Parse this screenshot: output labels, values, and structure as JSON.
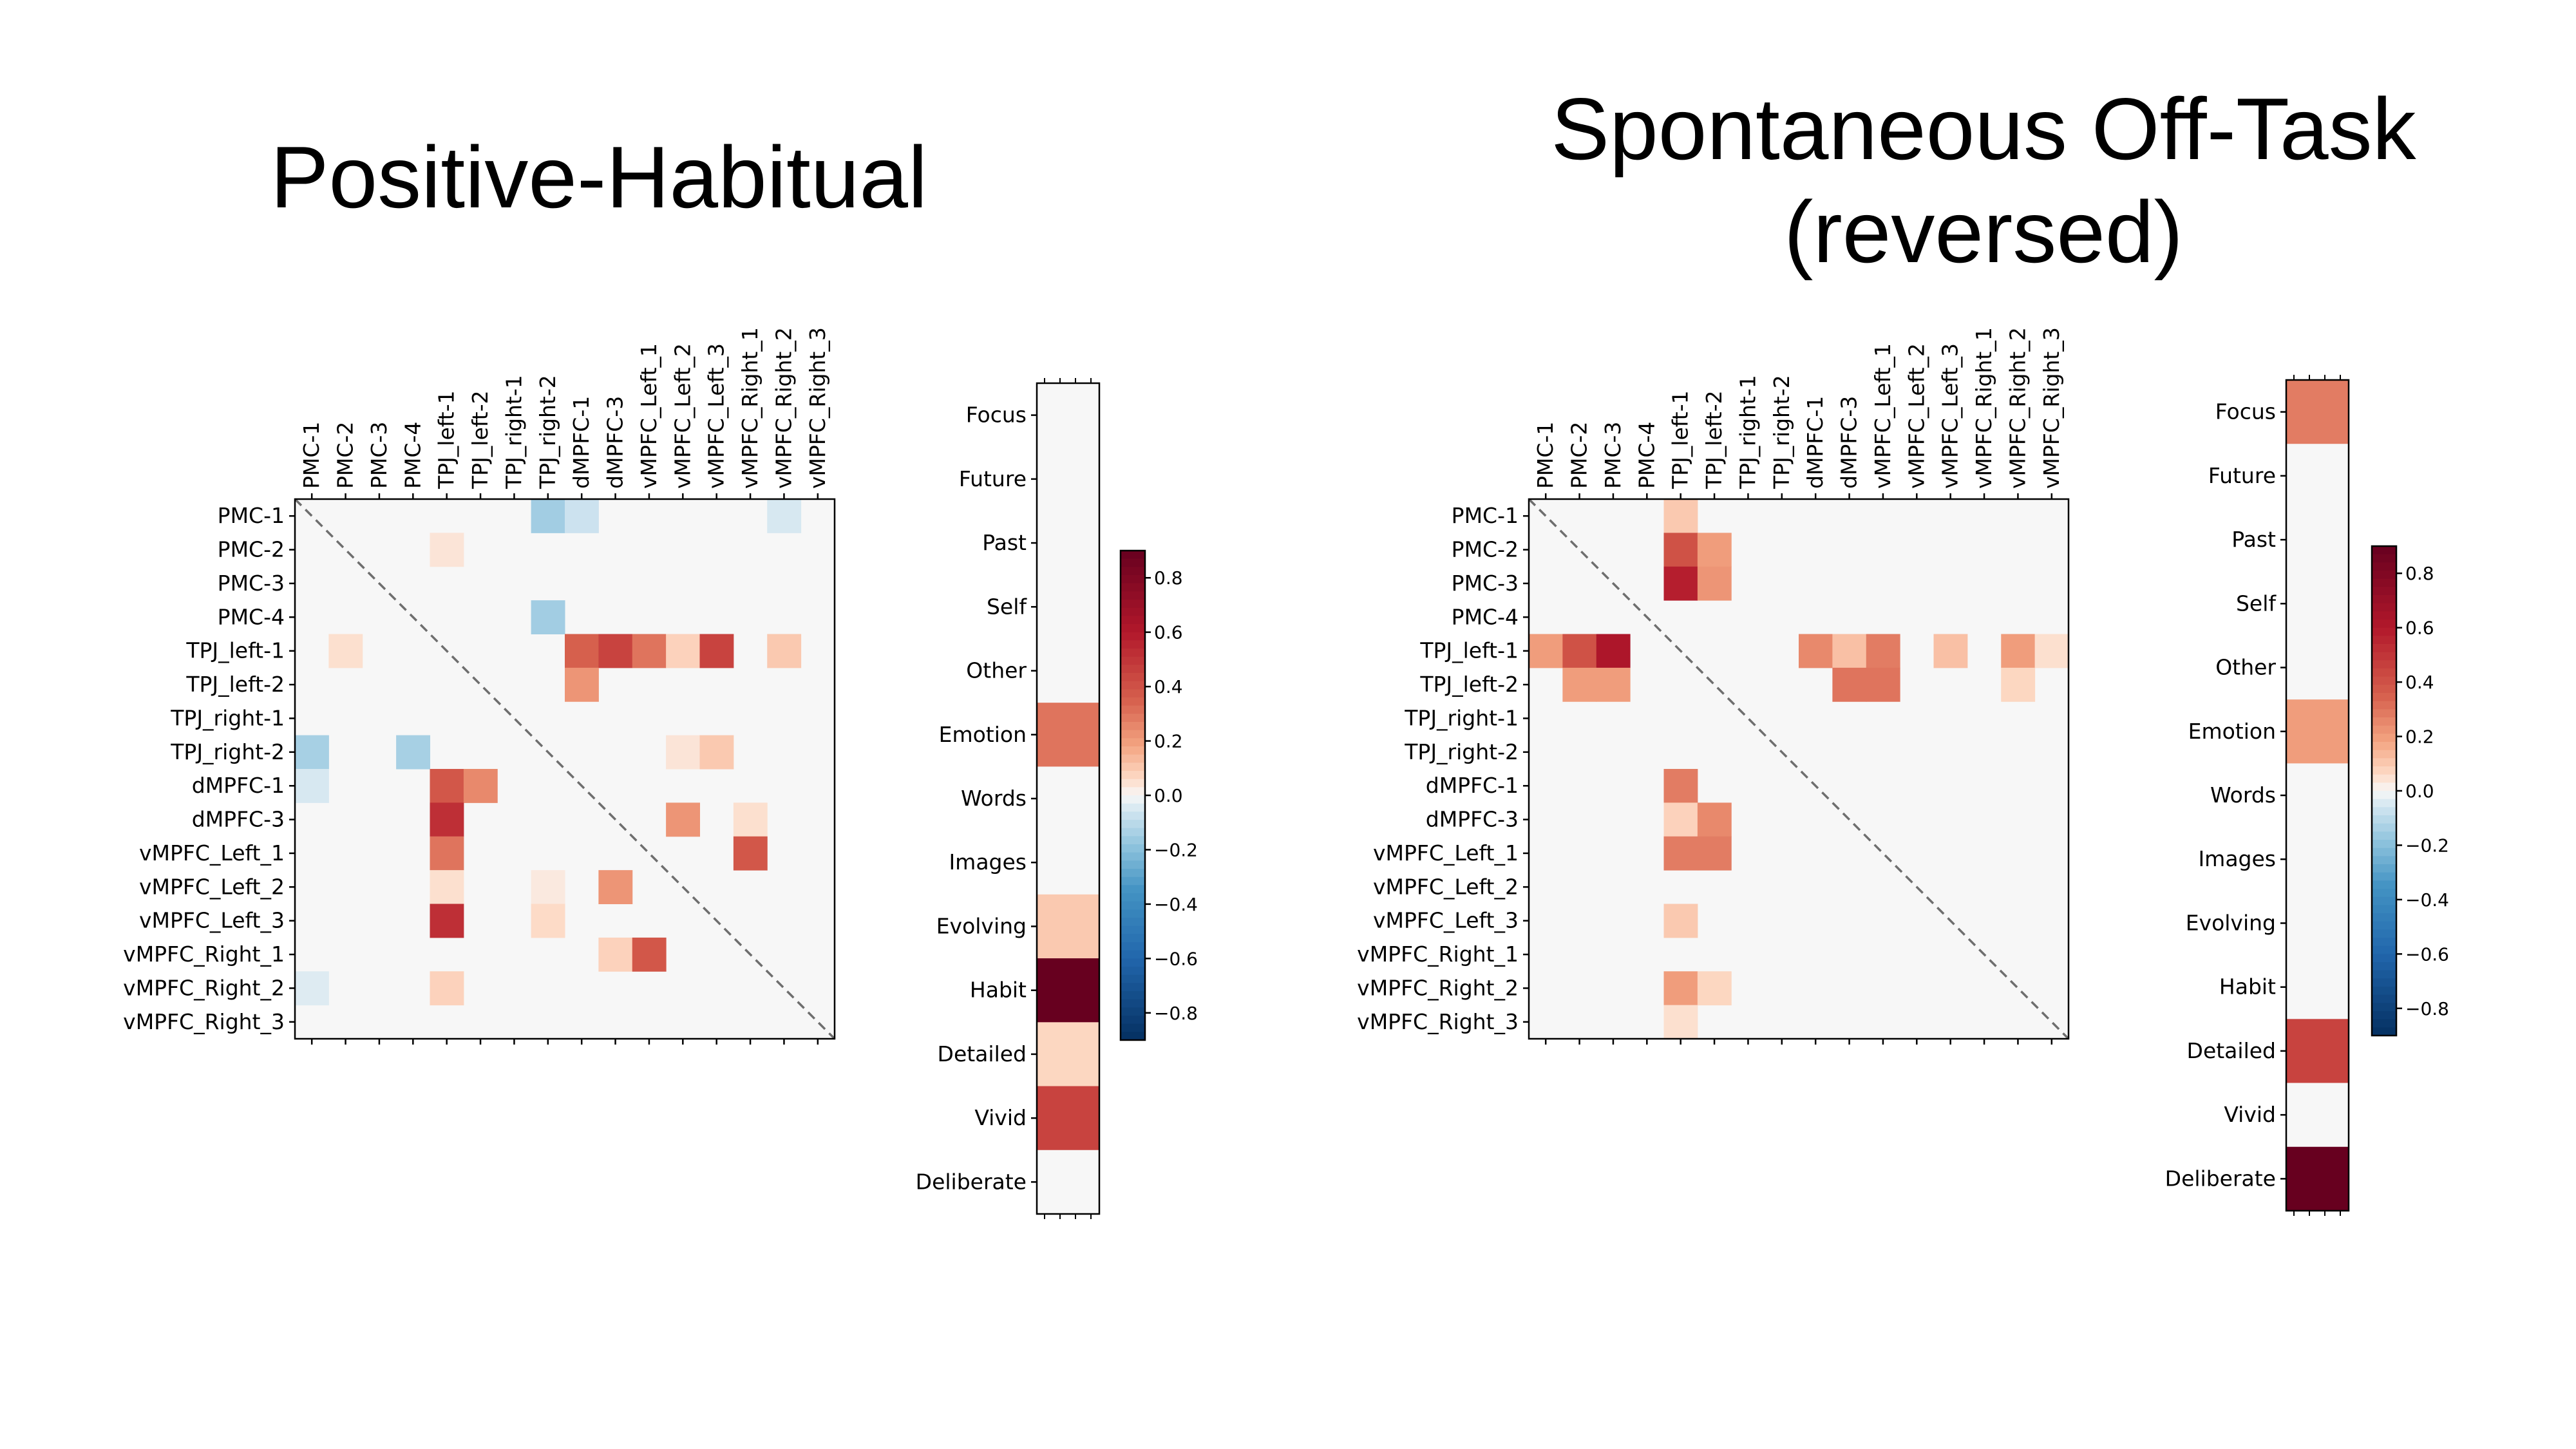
{
  "titles": {
    "left": "Positive-Habitual",
    "right_line1": "Spontaneous Off-Task",
    "right_line2": "(reversed)"
  },
  "chart_data": [
    {
      "type": "heatmap",
      "title": "Positive-Habitual",
      "subtitle": "",
      "labels": [
        "PMC-1",
        "PMC-2",
        "PMC-3",
        "PMC-4",
        "TPJ_left-1",
        "TPJ_left-2",
        "TPJ_right-1",
        "TPJ_right-2",
        "dMPFC-1",
        "dMPFC-3",
        "vMPFC_Left_1",
        "vMPFC_Left_2",
        "vMPFC_Left_3",
        "vMPFC_Right_1",
        "vMPFC_Right_2",
        "vMPFC_Right_3"
      ],
      "vlim": [
        -0.9,
        0.9
      ],
      "diagonal": "dashed",
      "cells": [
        {
          "row": 0,
          "col": 7,
          "value": -0.15
        },
        {
          "row": 0,
          "col": 8,
          "value": -0.07
        },
        {
          "row": 0,
          "col": 14,
          "value": -0.05
        },
        {
          "row": 1,
          "col": 4,
          "value": 0.04
        },
        {
          "row": 3,
          "col": 7,
          "value": -0.15
        },
        {
          "row": 4,
          "col": 1,
          "value": 0.05
        },
        {
          "row": 4,
          "col": 8,
          "value": 0.35
        },
        {
          "row": 4,
          "col": 9,
          "value": 0.45
        },
        {
          "row": 4,
          "col": 10,
          "value": 0.3
        },
        {
          "row": 4,
          "col": 11,
          "value": 0.08
        },
        {
          "row": 4,
          "col": 12,
          "value": 0.45
        },
        {
          "row": 4,
          "col": 14,
          "value": 0.1
        },
        {
          "row": 5,
          "col": 8,
          "value": 0.22
        },
        {
          "row": 7,
          "col": 0,
          "value": -0.14
        },
        {
          "row": 7,
          "col": 3,
          "value": -0.14
        },
        {
          "row": 7,
          "col": 11,
          "value": 0.04
        },
        {
          "row": 7,
          "col": 12,
          "value": 0.1
        },
        {
          "row": 8,
          "col": 0,
          "value": -0.05
        },
        {
          "row": 8,
          "col": 4,
          "value": 0.38
        },
        {
          "row": 8,
          "col": 5,
          "value": 0.25
        },
        {
          "row": 9,
          "col": 4,
          "value": 0.52
        },
        {
          "row": 9,
          "col": 11,
          "value": 0.22
        },
        {
          "row": 9,
          "col": 13,
          "value": 0.05
        },
        {
          "row": 10,
          "col": 4,
          "value": 0.3
        },
        {
          "row": 10,
          "col": 13,
          "value": 0.38
        },
        {
          "row": 11,
          "col": 4,
          "value": 0.05
        },
        {
          "row": 11,
          "col": 7,
          "value": 0.03
        },
        {
          "row": 11,
          "col": 9,
          "value": 0.22
        },
        {
          "row": 12,
          "col": 4,
          "value": 0.52
        },
        {
          "row": 12,
          "col": 7,
          "value": 0.06
        },
        {
          "row": 13,
          "col": 9,
          "value": 0.08
        },
        {
          "row": 13,
          "col": 10,
          "value": 0.38
        },
        {
          "row": 14,
          "col": 0,
          "value": -0.04
        },
        {
          "row": 14,
          "col": 4,
          "value": 0.08
        }
      ],
      "colorbar": {
        "ticks": [
          "0.8",
          "0.6",
          "0.4",
          "0.2",
          "0.0",
          "−0.2",
          "−0.4",
          "−0.6",
          "−0.8"
        ]
      },
      "loadings": {
        "categories": [
          "Focus",
          "Future",
          "Past",
          "Self",
          "Other",
          "Emotion",
          "Words",
          "Images",
          "Evolving",
          "Habit",
          "Detailed",
          "Vivid",
          "Deliberate"
        ],
        "values": [
          0.0,
          0.0,
          0.0,
          0.0,
          0.0,
          0.3,
          0.0,
          0.0,
          0.1,
          0.9,
          0.07,
          0.45,
          0.0
        ]
      }
    },
    {
      "type": "heatmap",
      "title": "Spontaneous Off-Task (reversed)",
      "subtitle": "",
      "labels": [
        "PMC-1",
        "PMC-2",
        "PMC-3",
        "PMC-4",
        "TPJ_left-1",
        "TPJ_left-2",
        "TPJ_right-1",
        "TPJ_right-2",
        "dMPFC-1",
        "dMPFC-3",
        "vMPFC_Left_1",
        "vMPFC_Left_2",
        "vMPFC_Left_3",
        "vMPFC_Right_1",
        "vMPFC_Right_2",
        "vMPFC_Right_3"
      ],
      "vlim": [
        -0.9,
        0.9
      ],
      "diagonal": "dashed",
      "cells": [
        {
          "row": 0,
          "col": 4,
          "value": 0.1
        },
        {
          "row": 1,
          "col": 4,
          "value": 0.4
        },
        {
          "row": 1,
          "col": 5,
          "value": 0.2
        },
        {
          "row": 2,
          "col": 4,
          "value": 0.58
        },
        {
          "row": 2,
          "col": 5,
          "value": 0.22
        },
        {
          "row": 4,
          "col": 0,
          "value": 0.2
        },
        {
          "row": 4,
          "col": 1,
          "value": 0.4
        },
        {
          "row": 4,
          "col": 2,
          "value": 0.62
        },
        {
          "row": 4,
          "col": 8,
          "value": 0.25
        },
        {
          "row": 4,
          "col": 9,
          "value": 0.12
        },
        {
          "row": 4,
          "col": 10,
          "value": 0.28
        },
        {
          "row": 4,
          "col": 12,
          "value": 0.12
        },
        {
          "row": 4,
          "col": 14,
          "value": 0.2
        },
        {
          "row": 4,
          "col": 15,
          "value": 0.05
        },
        {
          "row": 5,
          "col": 1,
          "value": 0.2
        },
        {
          "row": 5,
          "col": 2,
          "value": 0.2
        },
        {
          "row": 5,
          "col": 9,
          "value": 0.3
        },
        {
          "row": 5,
          "col": 10,
          "value": 0.3
        },
        {
          "row": 5,
          "col": 14,
          "value": 0.07
        },
        {
          "row": 8,
          "col": 4,
          "value": 0.28
        },
        {
          "row": 9,
          "col": 4,
          "value": 0.08
        },
        {
          "row": 9,
          "col": 5,
          "value": 0.25
        },
        {
          "row": 10,
          "col": 4,
          "value": 0.28
        },
        {
          "row": 10,
          "col": 5,
          "value": 0.28
        },
        {
          "row": 12,
          "col": 4,
          "value": 0.1
        },
        {
          "row": 14,
          "col": 4,
          "value": 0.2
        },
        {
          "row": 14,
          "col": 5,
          "value": 0.07
        },
        {
          "row": 15,
          "col": 4,
          "value": 0.05
        }
      ],
      "colorbar": {
        "ticks": [
          "0.8",
          "0.6",
          "0.4",
          "0.2",
          "0.0",
          "−0.2",
          "−0.4",
          "−0.6",
          "−0.8"
        ]
      },
      "loadings": {
        "categories": [
          "Focus",
          "Future",
          "Past",
          "Self",
          "Other",
          "Emotion",
          "Words",
          "Images",
          "Evolving",
          "Habit",
          "Detailed",
          "Vivid",
          "Deliberate"
        ],
        "values": [
          0.28,
          0.0,
          0.0,
          0.0,
          0.0,
          0.2,
          0.0,
          0.0,
          0.0,
          0.0,
          0.45,
          0.0,
          0.9
        ]
      }
    }
  ]
}
